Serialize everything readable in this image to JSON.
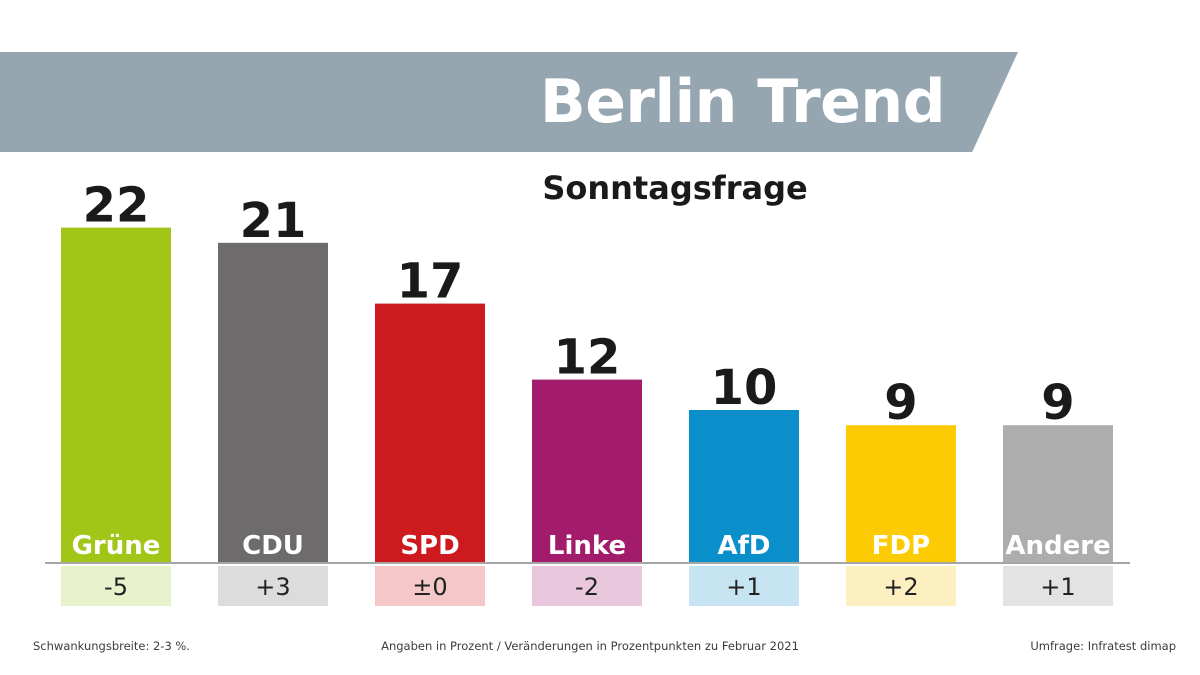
{
  "header": {
    "title": "Berlin Trend",
    "subtitle": "Sonntagsfrage"
  },
  "chart_data": {
    "type": "bar",
    "title": "Sonntagsfrage",
    "categories": [
      "Grüne",
      "CDU",
      "SPD",
      "Linke",
      "AfD",
      "FDP",
      "Andere"
    ],
    "values": [
      22,
      21,
      17,
      12,
      10,
      9,
      9
    ],
    "changes": [
      "-5",
      "+3",
      "±0",
      "-2",
      "+1",
      "+2",
      "+1"
    ],
    "colors": [
      "#a2c617",
      "#6d6b6c",
      "#cc1a1f",
      "#a21c6b",
      "#0b8fcb",
      "#fdcb03",
      "#adadad"
    ],
    "change_bg_colors": [
      "#e8f2cc",
      "#dcdcdc",
      "#f4c8c9",
      "#e9c7dc",
      "#c6e4f2",
      "#fdf0c0",
      "#e3e3e3"
    ],
    "ylim": [
      0,
      26
    ],
    "xlabel": "",
    "ylabel": ""
  },
  "footer": {
    "left": "Schwankungsbreite: 2-3 %.",
    "center": "Angaben in Prozent / Veränderungen in Prozentpunkten zu Februar 2021",
    "right": "Umfrage: Infratest dimap"
  }
}
